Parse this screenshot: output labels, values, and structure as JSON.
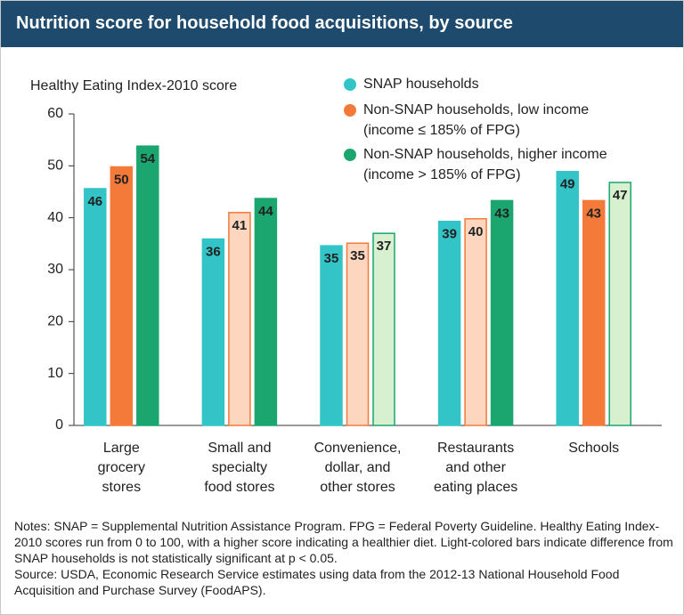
{
  "chart_data": {
    "type": "bar",
    "title": "Nutrition score for household food acquisitions, by source",
    "y_label": "Healthy Eating Index-2010 score",
    "categories": [
      "Large\ngrocery\nstores",
      "Small and\nspecialty\nfood stores",
      "Convenience,\ndollar, and\nother stores",
      "Restaurants\nand other\neating places",
      "Schools"
    ],
    "series": [
      {
        "name": "SNAP households",
        "color": "#33c4c8",
        "colors": [
          "#33c4c8",
          "#33c4c8",
          "#33c4c8",
          "#33c4c8",
          "#33c4c8"
        ],
        "values": [
          45.6,
          35.9,
          34.6,
          39.3,
          48.9
        ],
        "value_labels": [
          "46",
          "36",
          "35",
          "39",
          "49"
        ]
      },
      {
        "name": "Non-SNAP households, low income\n(income ≤ 185% of FPG)",
        "color": "#f47a3a",
        "colors": [
          "#f47a3a",
          "#fcd6bf",
          "#fcd6bf",
          "#fcd6bf",
          "#f47a3a"
        ],
        "values": [
          49.8,
          41.0,
          35.1,
          39.8,
          43.3
        ],
        "value_labels": [
          "50",
          "41",
          "35",
          "40",
          "43"
        ]
      },
      {
        "name": "Non-SNAP households, higher income\n(income > 185% of FPG)",
        "color": "#1ba56f",
        "colors": [
          "#1ba56f",
          "#1ba56f",
          "#d7f0cf",
          "#1ba56f",
          "#d7f0cf"
        ],
        "values": [
          53.8,
          43.7,
          37.0,
          43.3,
          46.8
        ],
        "value_labels": [
          "54",
          "44",
          "37",
          "43",
          "47"
        ]
      }
    ],
    "ylim": [
      0,
      60
    ],
    "yticks": [
      0,
      10,
      20,
      30,
      40,
      50,
      60
    ],
    "grid": false,
    "notes": "Notes: SNAP = Supplemental Nutrition Assistance Program. FPG = Federal Poverty Guideline. Healthy Eating Index-2010 scores run from 0 to 100, with a higher score indicating a healthier diet. Light-colored bars indicate difference from SNAP households is not statistically significant at p < 0.05.",
    "source": "Source: USDA, Economic Research Service estimates using data from the 2012-13 National Household Food Acquisition and Purchase Survey (FoodAPS)."
  }
}
